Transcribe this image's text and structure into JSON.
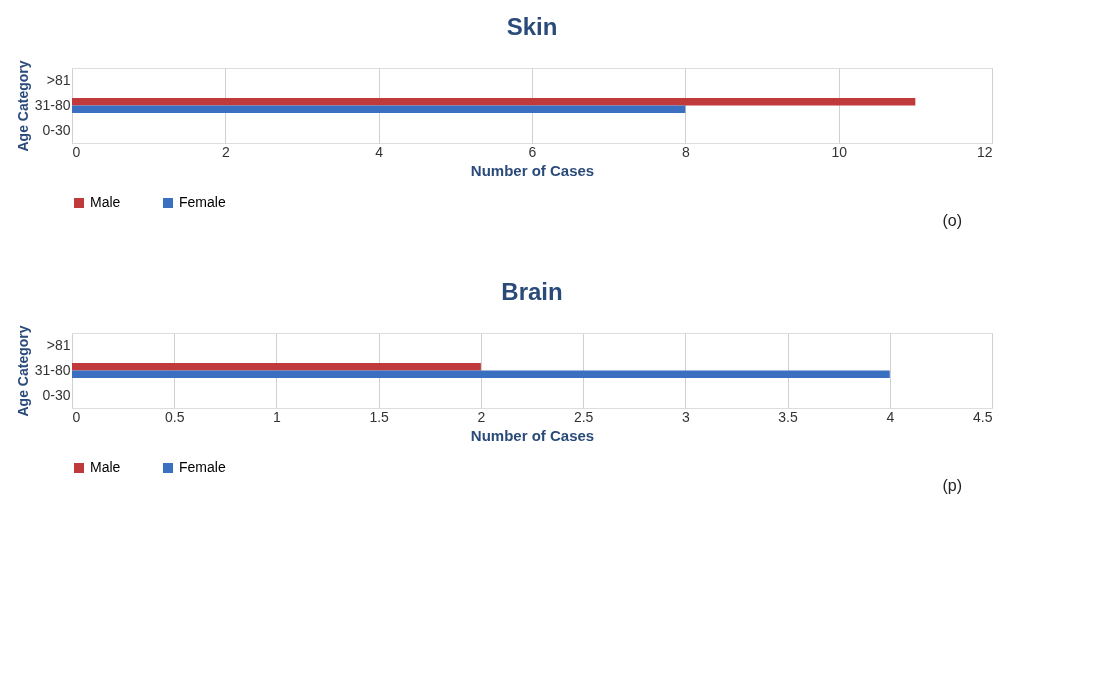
{
  "chart_data": [
    {
      "type": "bar",
      "orientation": "horizontal",
      "title": "Skin",
      "xlabel": "Number of Cases",
      "ylabel": "Age Category",
      "categories": [
        ">81",
        "31-80",
        "0-30"
      ],
      "series": [
        {
          "name": "Male",
          "color": "#c0393b",
          "values": [
            0,
            11,
            0
          ]
        },
        {
          "name": "Female",
          "color": "#3b6fc0",
          "values": [
            0,
            8,
            0
          ]
        }
      ],
      "xlim": [
        0,
        12
      ],
      "xticks": [
        0,
        2,
        4,
        6,
        8,
        10,
        12
      ],
      "grid": "x",
      "legend": "bottom",
      "annotations": [
        "(o)"
      ]
    },
    {
      "type": "bar",
      "orientation": "horizontal",
      "title": "Brain",
      "xlabel": "Number of Cases",
      "ylabel": "Age Category",
      "categories": [
        ">81",
        "31-80",
        "0-30"
      ],
      "series": [
        {
          "name": "Male",
          "color": "#c0393b",
          "values": [
            0,
            2,
            0
          ]
        },
        {
          "name": "Female",
          "color": "#3b6fc0",
          "values": [
            0,
            4,
            0
          ]
        }
      ],
      "xlim": [
        0,
        4.5
      ],
      "xticks": [
        0,
        0.5,
        1,
        1.5,
        2,
        2.5,
        3,
        3.5,
        4,
        4.5
      ],
      "grid": "x",
      "legend": "bottom",
      "annotations": [
        "(p)"
      ]
    }
  ]
}
